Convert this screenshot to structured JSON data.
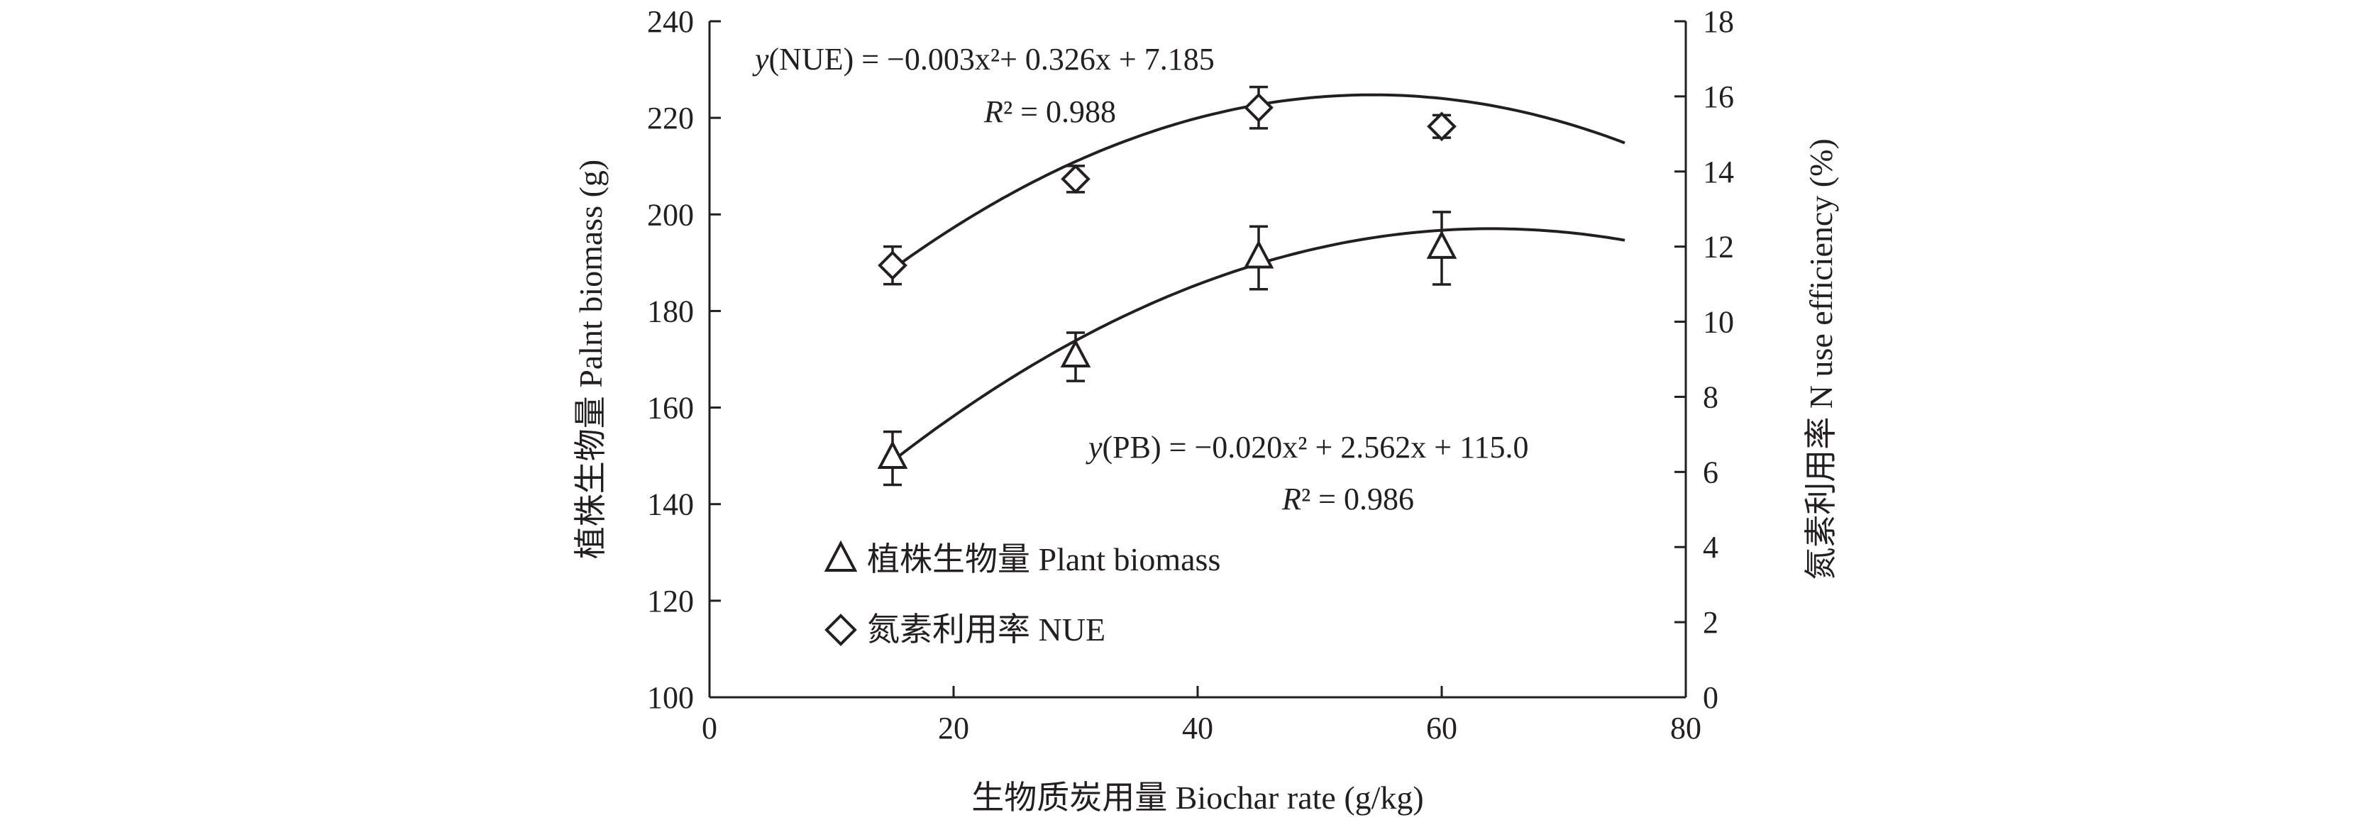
{
  "chart_data": {
    "type": "scatter",
    "x_axis": {
      "label": "生物质炭用量 Biochar rate (g/kg)",
      "range": [
        0,
        80
      ],
      "ticks": [
        0,
        20,
        40,
        60,
        80
      ]
    },
    "y_left": {
      "label": "植株生物量 Palnt biomass (g)",
      "range": [
        100,
        240
      ],
      "ticks": [
        100,
        120,
        140,
        160,
        180,
        200,
        220,
        240
      ]
    },
    "y_right": {
      "label": "氮素利用率 N use efficiency (%)",
      "range": [
        0,
        18
      ],
      "ticks": [
        0,
        2,
        4,
        6,
        8,
        10,
        12,
        14,
        16,
        18
      ]
    },
    "series": [
      {
        "name": "植株生物量 Plant biomass",
        "marker": "triangle",
        "axis": "left",
        "x": [
          15,
          30,
          45,
          60
        ],
        "y": [
          149.5,
          170.5,
          191,
          193
        ],
        "err": [
          5.5,
          5,
          6.5,
          7.5
        ],
        "fit": {
          "coeffs": [
            -0.02,
            2.562,
            115.0
          ],
          "x_range": [
            15,
            75
          ],
          "equation_prefix": "y",
          "equation_body": "(PB) = −0.020x² + 2.562x + 115.0",
          "r2_label": "R",
          "r2_value": "² = 0.986"
        }
      },
      {
        "name": "氮素利用率 NUE",
        "marker": "diamond",
        "axis": "right",
        "x": [
          15,
          30,
          45,
          60
        ],
        "y": [
          11.5,
          13.8,
          15.7,
          15.2
        ],
        "err": [
          0.5,
          0.35,
          0.55,
          0.3
        ],
        "fit": {
          "coeffs": [
            -0.003,
            0.326,
            7.185
          ],
          "x_range": [
            15,
            75
          ],
          "equation_prefix": "y",
          "equation_body": "(NUE) = −0.003x²+ 0.326x + 7.185",
          "r2_label": "R",
          "r2_value": "² = 0.988"
        }
      }
    ],
    "legend_position": "bottom-left"
  }
}
